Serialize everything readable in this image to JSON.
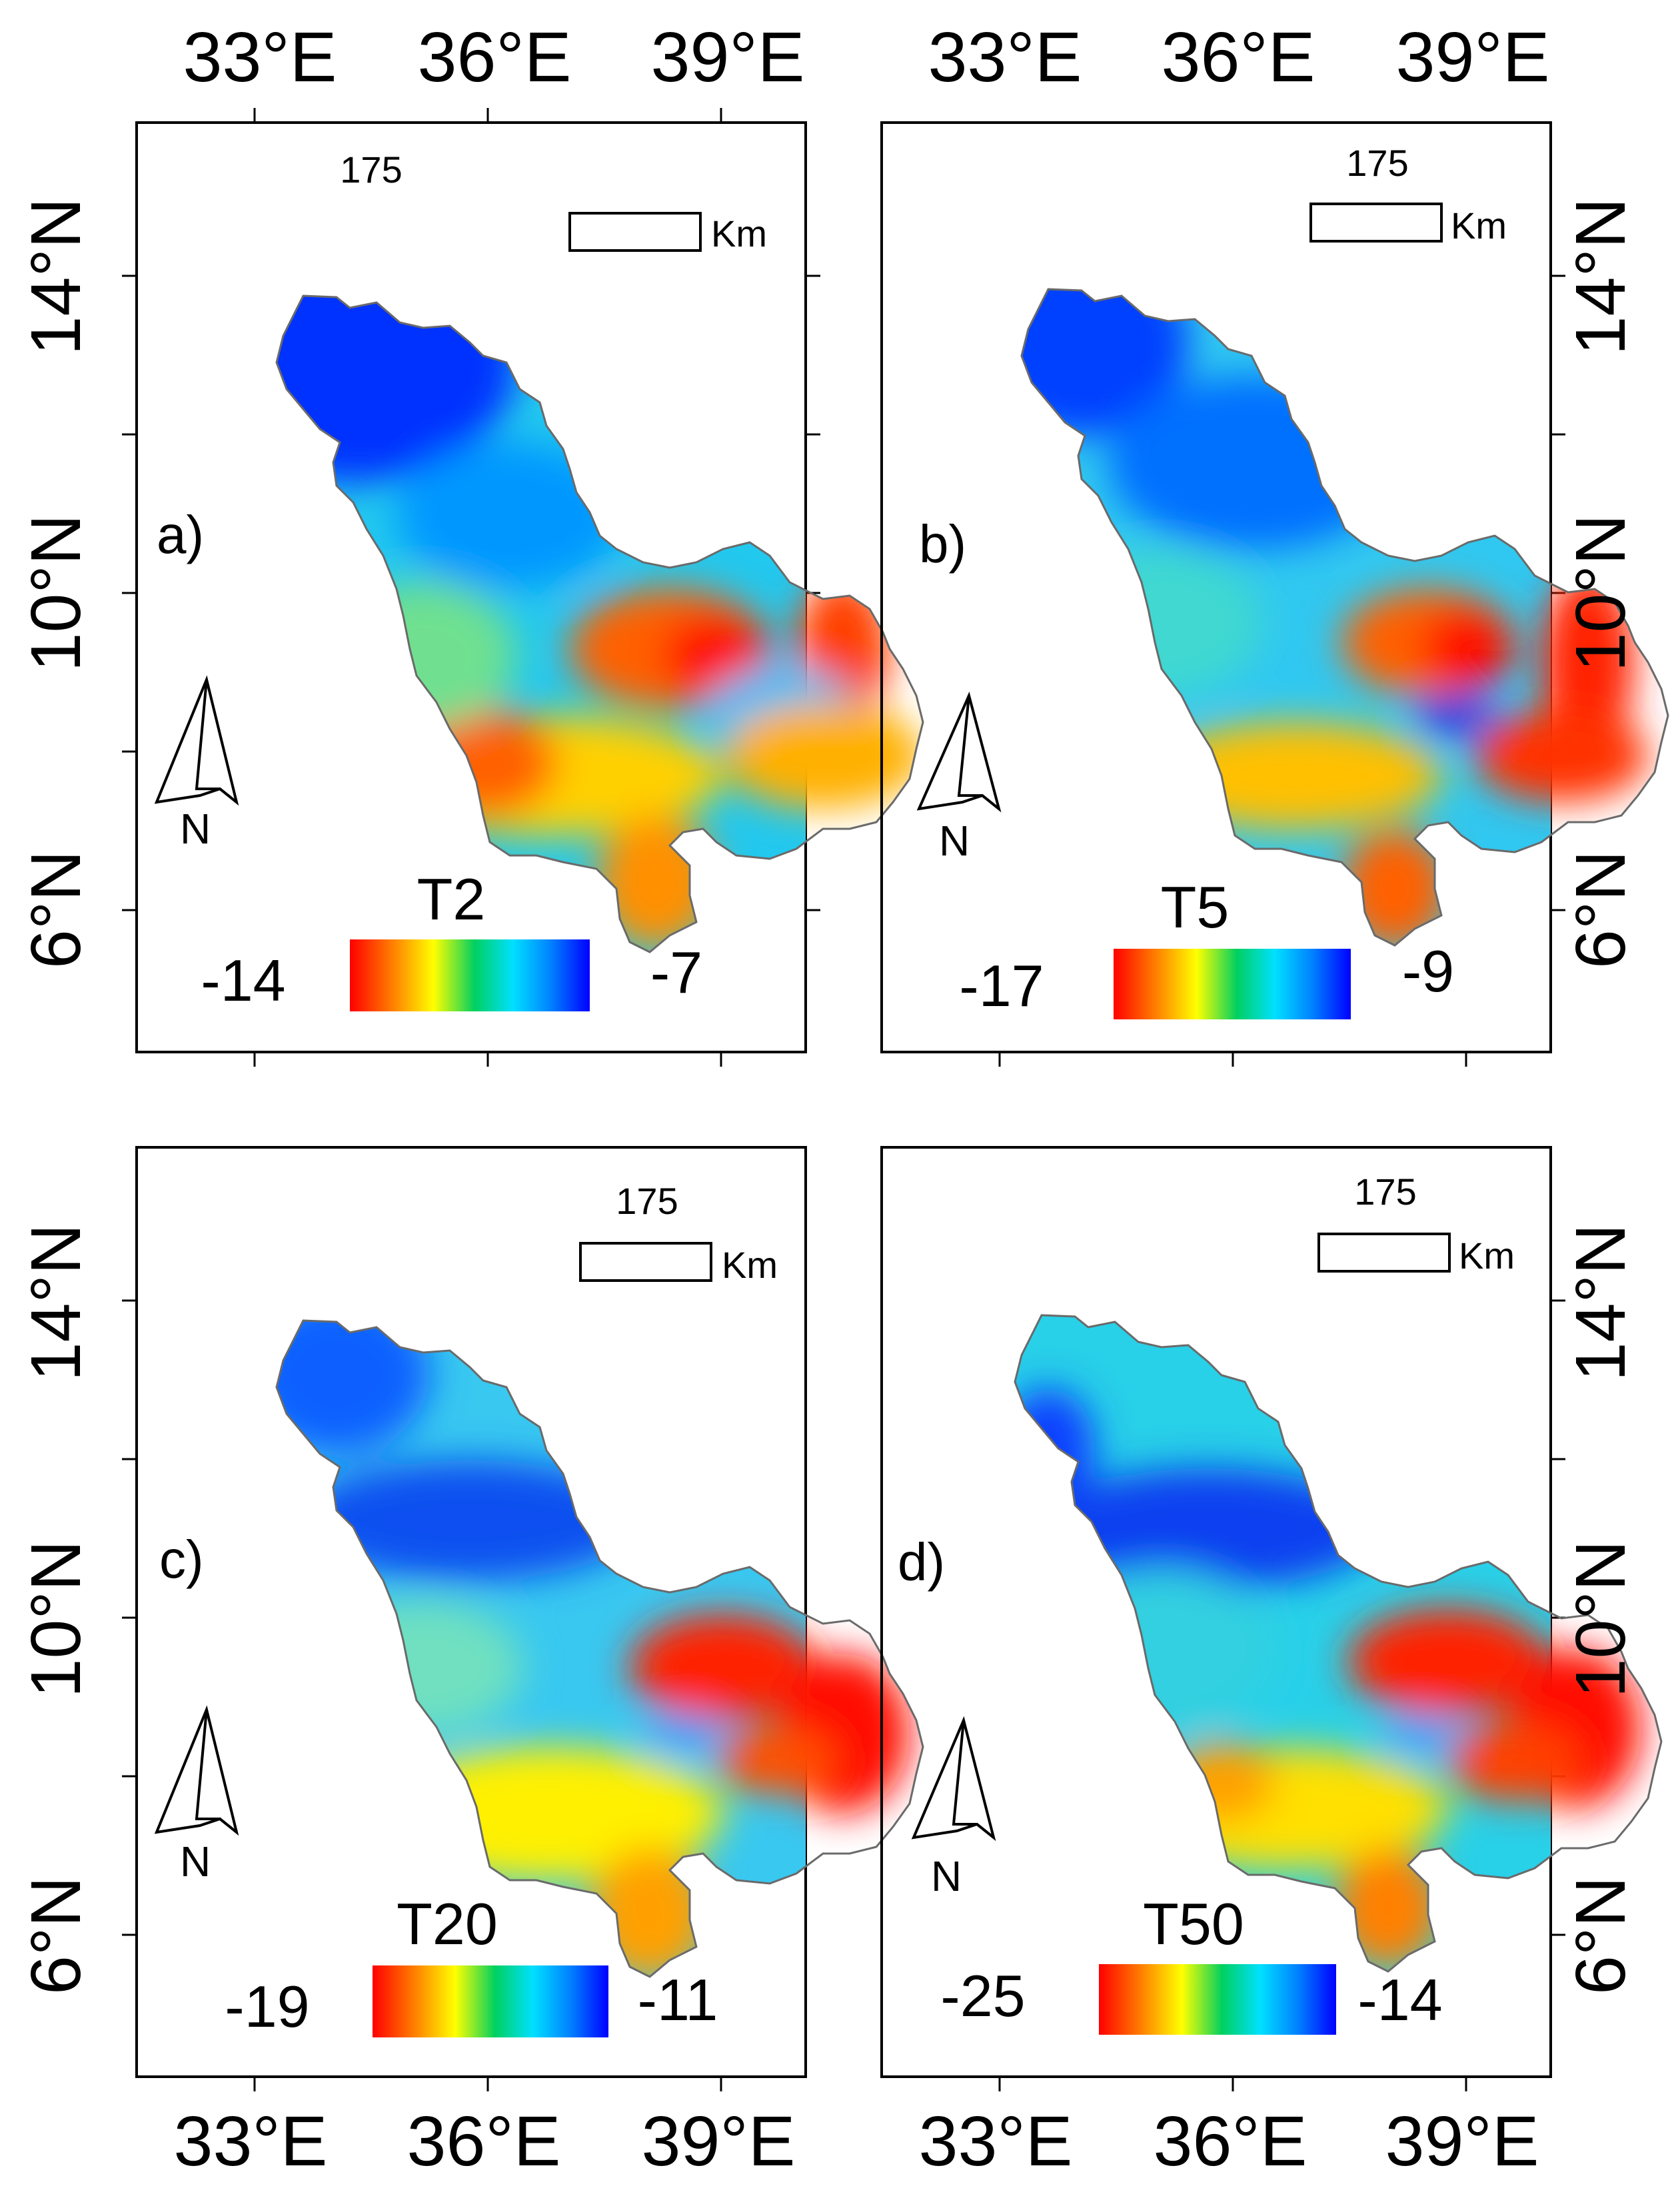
{
  "axes": {
    "top_lon_labels": [
      "33°E",
      "36°E",
      "39°E"
    ],
    "bottom_lon_labels": [
      "33°E",
      "36°E",
      "39°E"
    ],
    "lat_labels": [
      "14°N",
      "10°N",
      "6°N"
    ]
  },
  "panels": [
    {
      "id": "a",
      "label": "a)",
      "legend_title": "T2",
      "legend_min": "-14",
      "legend_max": "-7",
      "scale_value": "175",
      "scale_unit": "Km",
      "north": "N"
    },
    {
      "id": "b",
      "label": "b)",
      "legend_title": "T5",
      "legend_min": "-17",
      "legend_max": "-9",
      "scale_value": "175",
      "scale_unit": "Km",
      "north": "N"
    },
    {
      "id": "c",
      "label": "c)",
      "legend_title": "T20",
      "legend_min": "-19",
      "legend_max": "-11",
      "scale_value": "175",
      "scale_unit": "Km",
      "north": "N"
    },
    {
      "id": "d",
      "label": "d)",
      "legend_title": "T50",
      "legend_min": "-25",
      "legend_max": "-14",
      "scale_value": "175",
      "scale_unit": "Km",
      "north": "N"
    }
  ],
  "colors": {
    "ramp": [
      "#ff0000",
      "#ff8000",
      "#ffff00",
      "#00e070",
      "#00e0ff",
      "#0090ff",
      "#0000ff"
    ],
    "outline": "#6a6a6a"
  }
}
